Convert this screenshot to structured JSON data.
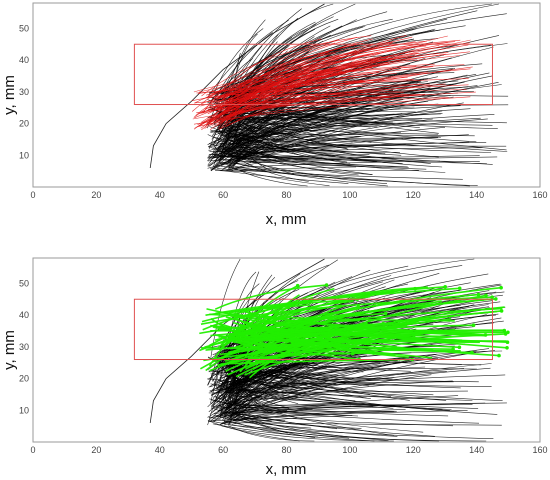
{
  "chart_data": [
    {
      "type": "line",
      "description_hint": "trajectory fan plot",
      "xlabel": "x, mm",
      "ylabel": "y, mm",
      "xlim": [
        0,
        160
      ],
      "ylim": [
        0,
        58
      ],
      "xticks": [
        "0",
        "20",
        "40",
        "60",
        "80",
        "100",
        "120",
        "140",
        "160"
      ],
      "yticks": [
        "10",
        "20",
        "30",
        "40",
        "50"
      ],
      "region": {
        "x0": 32,
        "x1": 145,
        "y0": 26,
        "y1": 45,
        "color": "#e05050"
      },
      "series": [
        {
          "role": "all",
          "color": "#000000",
          "count": 320,
          "origin": {
            "x_min": 55,
            "x_max": 64,
            "y_min": 5,
            "y_max": 30
          },
          "end_x_range": [
            65,
            150
          ],
          "end_y_range": [
            2,
            58
          ]
        },
        {
          "role": "inside-region",
          "color": "#e01010",
          "count": 90,
          "origin": {
            "x_min": 50,
            "x_max": 62,
            "y_min": 18,
            "y_max": 30
          },
          "end_x_range": [
            90,
            140
          ],
          "end_y_range": [
            28,
            48
          ]
        }
      ],
      "envelope_curve": {
        "points": [
          [
            37,
            6
          ],
          [
            38,
            13
          ],
          [
            42,
            20
          ],
          [
            50,
            27
          ],
          [
            60,
            37
          ],
          [
            75,
            48
          ],
          [
            92,
            58
          ]
        ]
      }
    },
    {
      "type": "line",
      "description_hint": "trajectory fan plot",
      "xlabel": "x, mm",
      "ylabel": "y, mm",
      "xlim": [
        0,
        160
      ],
      "ylim": [
        0,
        58
      ],
      "xticks": [
        "0",
        "20",
        "40",
        "60",
        "80",
        "100",
        "120",
        "140",
        "160"
      ],
      "yticks": [
        "10",
        "20",
        "30",
        "40",
        "50"
      ],
      "region": {
        "x0": 32,
        "x1": 145,
        "y0": 26,
        "y1": 45,
        "color": "#e05050"
      },
      "series": [
        {
          "role": "all",
          "color": "#000000",
          "count": 320,
          "origin": {
            "x_min": 55,
            "x_max": 64,
            "y_min": 5,
            "y_max": 30
          },
          "end_x_range": [
            65,
            150
          ],
          "end_y_range": [
            2,
            58
          ]
        },
        {
          "role": "selected",
          "color": "#22ee00",
          "count": 90,
          "origin": {
            "x_min": 52,
            "x_max": 70,
            "y_min": 20,
            "y_max": 42
          },
          "end_x_range": [
            80,
            150
          ],
          "end_y_range": [
            26,
            50
          ]
        }
      ],
      "envelope_curve": {
        "points": [
          [
            37,
            6
          ],
          [
            38,
            13
          ],
          [
            42,
            20
          ],
          [
            50,
            27
          ],
          [
            60,
            37
          ],
          [
            75,
            48
          ],
          [
            92,
            58
          ]
        ]
      }
    }
  ]
}
